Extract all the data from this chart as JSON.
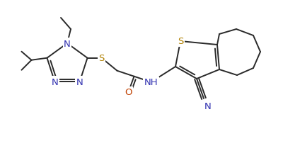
{
  "bg_color": "#ffffff",
  "line_color": "#2a2a2a",
  "atom_colors": {
    "N": "#3030b0",
    "S": "#b08000",
    "O": "#c04000",
    "C": "#2a2a2a"
  },
  "font_size_atom": 9.5,
  "line_width": 1.4,
  "figsize": [
    4.0,
    2.07
  ],
  "dpi": 100
}
